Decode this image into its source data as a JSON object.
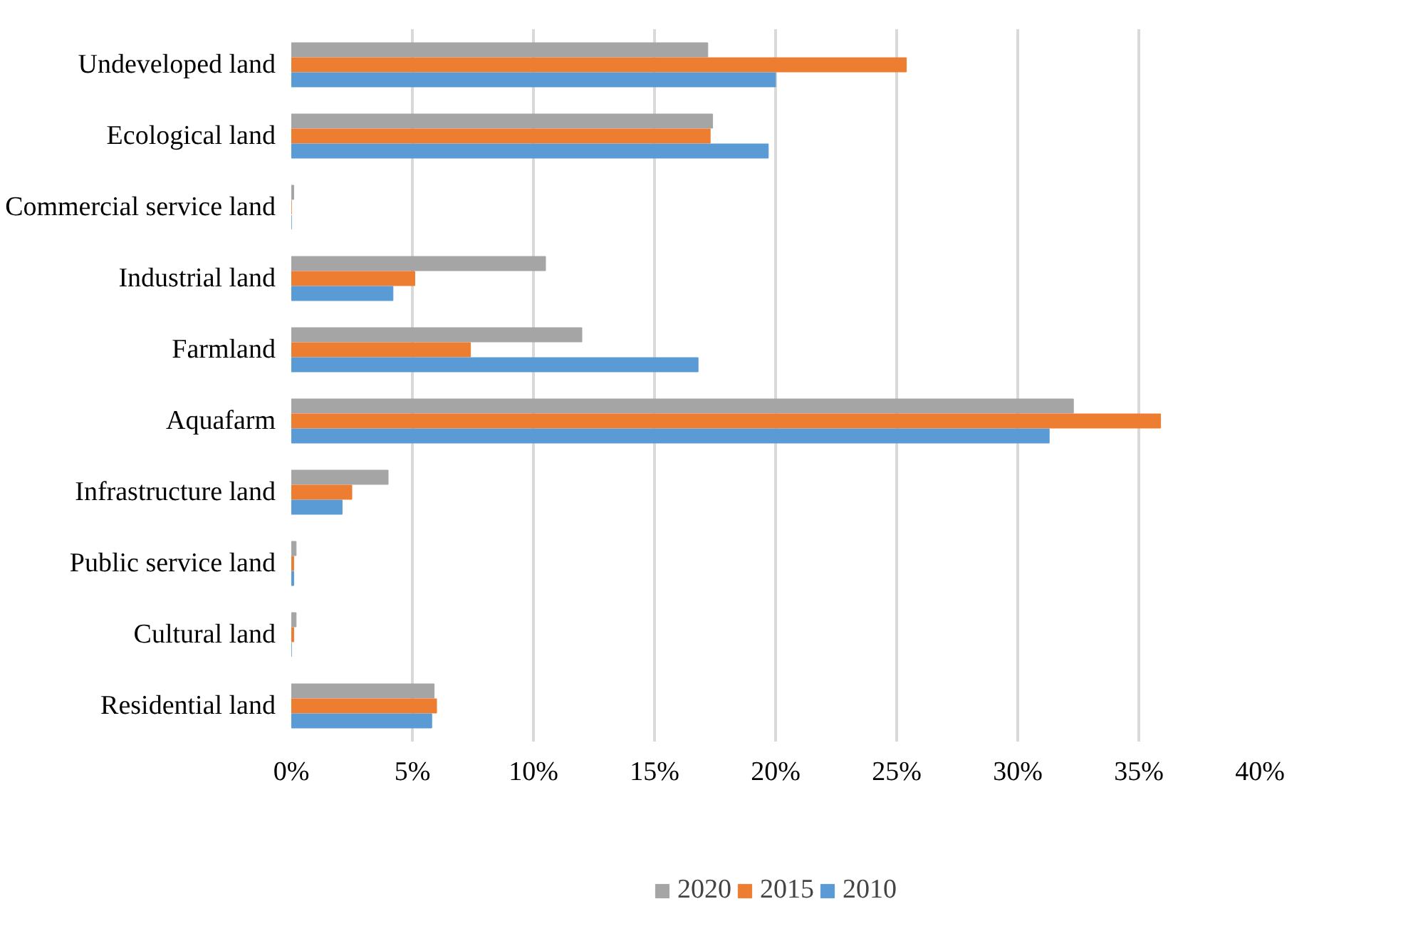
{
  "chart_data": {
    "type": "bar",
    "orientation": "horizontal",
    "categories": [
      "Undeveloped land",
      "Ecological land",
      "Commercial service land",
      "Industrial land",
      "Farmland",
      "Aquafarm",
      "Infrastructure land",
      "Public service land",
      "Cultural land",
      "Residential land"
    ],
    "series": [
      {
        "name": "2020",
        "color": "#a5a5a5",
        "values": [
          17.2,
          17.4,
          0.1,
          10.5,
          12.0,
          32.3,
          4.0,
          0.2,
          0.2,
          5.9
        ]
      },
      {
        "name": "2015",
        "color": "#ed7d31",
        "values": [
          25.4,
          17.3,
          0,
          5.1,
          7.4,
          35.9,
          2.5,
          0.1,
          0.1,
          6.0
        ]
      },
      {
        "name": "2010",
        "color": "#5b9bd5",
        "values": [
          20.0,
          19.7,
          0,
          4.2,
          16.8,
          31.3,
          2.1,
          0.1,
          0,
          5.8
        ]
      }
    ],
    "xlim": [
      0,
      40
    ],
    "xticks": [
      {
        "value": 0,
        "label": "0%"
      },
      {
        "value": 5,
        "label": "5%"
      },
      {
        "value": 10,
        "label": "10%"
      },
      {
        "value": 15,
        "label": "15%"
      },
      {
        "value": 20,
        "label": "20%"
      },
      {
        "value": 25,
        "label": "25%"
      },
      {
        "value": 30,
        "label": "30%"
      },
      {
        "value": 35,
        "label": "35%"
      },
      {
        "value": 40,
        "label": "40%"
      }
    ],
    "grid": "x",
    "legend": "bottom"
  }
}
